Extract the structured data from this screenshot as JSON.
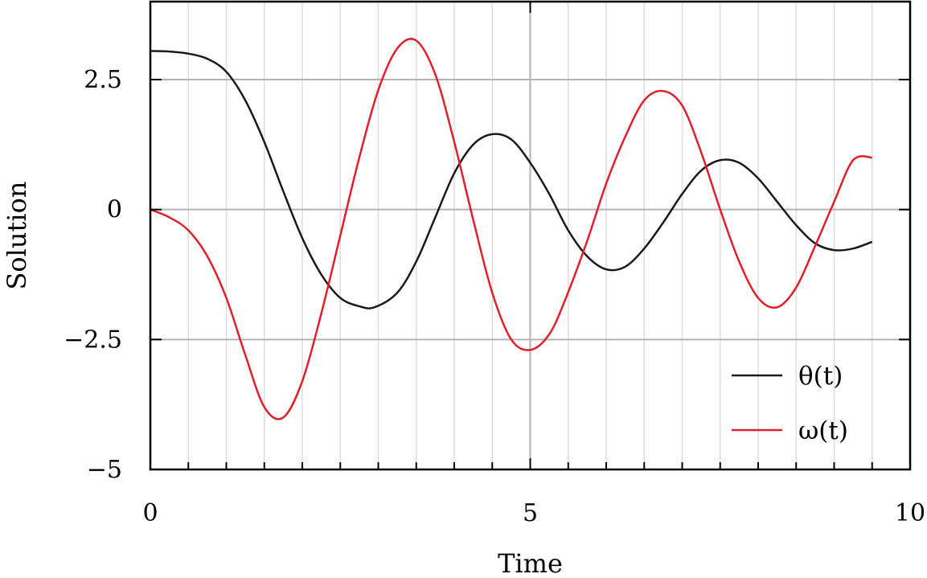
{
  "chart_data": {
    "type": "line",
    "title": "",
    "xlabel": "Time",
    "ylabel": "Solution",
    "xlim": [
      0,
      10
    ],
    "ylim": [
      -5,
      4
    ],
    "x_ticks": [
      0,
      5,
      10
    ],
    "x_tick_labels": [
      "0",
      "5",
      "10"
    ],
    "y_ticks": [
      2.5,
      0,
      -2.5,
      -5
    ],
    "y_tick_labels": [
      "2.5",
      "0",
      "−2.5",
      "−5"
    ],
    "major_grid": true,
    "minor_grid": true,
    "minor_x_step": 0.5,
    "legend_position": "bottom-right",
    "series": [
      {
        "name": "θ(t)",
        "color": "#1a1a1a",
        "x": [
          0.0,
          0.25,
          0.5,
          0.75,
          1.0,
          1.25,
          1.5,
          1.75,
          2.0,
          2.25,
          2.5,
          2.75,
          2.95,
          3.25,
          3.5,
          3.75,
          4.0,
          4.25,
          4.5,
          4.75,
          5.0,
          5.25,
          5.5,
          5.75,
          6.0,
          6.25,
          6.5,
          6.75,
          7.0,
          7.25,
          7.5,
          7.75,
          8.0,
          8.25,
          8.5,
          8.75,
          9.0,
          9.25,
          9.5
        ],
        "y": [
          3.05,
          3.04,
          3.0,
          2.9,
          2.65,
          2.1,
          1.3,
          0.35,
          -0.55,
          -1.25,
          -1.7,
          -1.86,
          -1.88,
          -1.6,
          -1.0,
          -0.15,
          0.7,
          1.25,
          1.45,
          1.35,
          0.9,
          0.3,
          -0.4,
          -0.9,
          -1.15,
          -1.1,
          -0.75,
          -0.25,
          0.3,
          0.75,
          0.95,
          0.9,
          0.6,
          0.15,
          -0.3,
          -0.65,
          -0.78,
          -0.75,
          -0.62
        ]
      },
      {
        "name": "ω(t)",
        "color": "#e0202b",
        "x": [
          0.0,
          0.25,
          0.5,
          0.75,
          1.0,
          1.25,
          1.5,
          1.75,
          2.0,
          2.25,
          2.5,
          2.75,
          3.0,
          3.25,
          3.5,
          3.75,
          4.0,
          4.25,
          4.5,
          4.75,
          5.0,
          5.25,
          5.47,
          5.75,
          6.0,
          6.25,
          6.5,
          6.75,
          7.0,
          7.25,
          7.5,
          7.75,
          8.0,
          8.25,
          8.5,
          8.75,
          9.0,
          9.25,
          9.5
        ],
        "y": [
          0.0,
          -0.15,
          -0.4,
          -0.9,
          -1.7,
          -2.8,
          -3.8,
          -4.0,
          -3.3,
          -2.0,
          -0.5,
          1.0,
          2.3,
          3.1,
          3.25,
          2.6,
          1.3,
          -0.2,
          -1.6,
          -2.5,
          -2.7,
          -2.4,
          -1.7,
          -0.6,
          0.5,
          1.4,
          2.1,
          2.28,
          2.0,
          1.1,
          0.0,
          -1.0,
          -1.7,
          -1.88,
          -1.5,
          -0.7,
          0.15,
          0.95,
          1.0
        ]
      }
    ]
  }
}
